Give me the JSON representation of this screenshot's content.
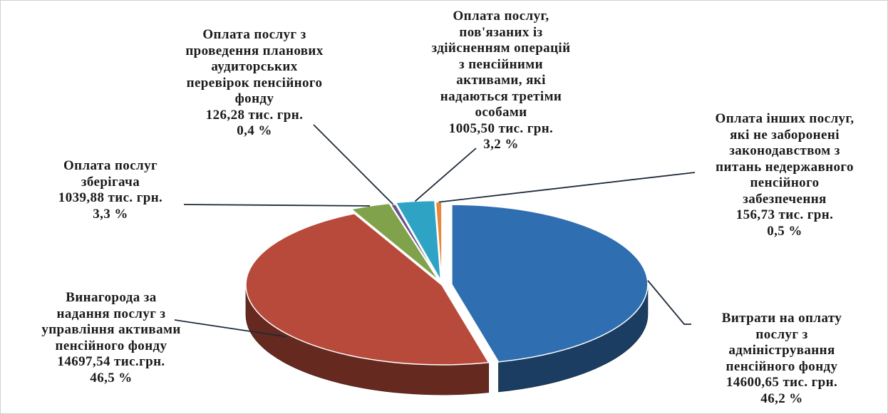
{
  "chart_data": {
    "type": "pie",
    "title": "",
    "slices": [
      {
        "label_lines": [
          "Витрати на оплату",
          "послуг з",
          "адміністрування",
          "пенсійного фонду"
        ],
        "value_text": "14600,65 тис. грн.",
        "percent_text": "46,2 %",
        "value": 14600.65,
        "percent": 46.2,
        "color": "#2f6eb0"
      },
      {
        "label_lines": [
          "Винагорода  за",
          "надання послуг з",
          "управління активами",
          "пенсійного фонду"
        ],
        "value_text": "14697,54 тис.грн.",
        "percent_text": "46,5 %",
        "value": 14697.54,
        "percent": 46.5,
        "color": "#b84a3b"
      },
      {
        "label_lines": [
          "Оплата послуг",
          "зберігача"
        ],
        "value_text": "1039,88 тис. грн.",
        "percent_text": "3,3 %",
        "value": 1039.88,
        "percent": 3.3,
        "color": "#7fa24a"
      },
      {
        "label_lines": [
          "Оплата послуг з",
          "проведення планових",
          "аудиторських",
          "перевірок пенсійного",
          "фонду"
        ],
        "value_text": "126,28 тис. грн.",
        "percent_text": "0,4 %",
        "value": 126.28,
        "percent": 0.4,
        "color": "#6a4f8f"
      },
      {
        "label_lines": [
          "Оплата послуг,",
          "пов'язаних із",
          "здійсненням операцій",
          "з пенсійними",
          "активами, які",
          "надаються третіми",
          "особами"
        ],
        "value_text": "1005,50 тис. грн.",
        "percent_text": "3,2 %",
        "value": 1005.5,
        "percent": 3.2,
        "color": "#2fa3c4"
      },
      {
        "label_lines": [
          "Оплата інших послуг,",
          "які не заборонені",
          "законодавством з",
          "питань недержавного",
          "пенсійного",
          "забезпечення"
        ],
        "value_text": "156,73 тис. грн.",
        "percent_text": "0,5 %",
        "value": 156.73,
        "percent": 0.5,
        "color": "#e8873a"
      }
    ]
  }
}
